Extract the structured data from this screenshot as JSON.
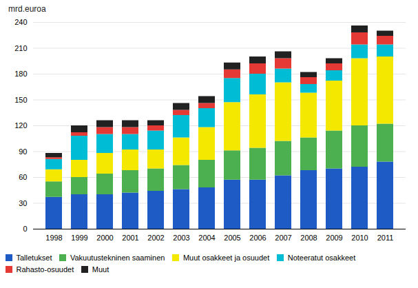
{
  "chart_data": {
    "type": "bar",
    "stacked": true,
    "categories": [
      "1998",
      "1999",
      "2000",
      "2001",
      "2002",
      "2003",
      "2004",
      "2005",
      "2006",
      "2007",
      "2008",
      "2009",
      "2010",
      "2011"
    ],
    "series": [
      {
        "name": "Talletukset",
        "color": "#1f5bc4",
        "values": [
          37,
          40,
          40,
          42,
          44,
          46,
          48,
          57,
          57,
          62,
          68,
          70,
          72,
          78
        ]
      },
      {
        "name": "Vakuutustekninen saaminen",
        "color": "#4caf50",
        "values": [
          18,
          20,
          24,
          26,
          26,
          28,
          32,
          34,
          37,
          40,
          38,
          44,
          48,
          44
        ]
      },
      {
        "name": "Muut osakkeet ja osuudet",
        "color": "#f5e800",
        "values": [
          14,
          20,
          24,
          24,
          22,
          32,
          38,
          56,
          62,
          68,
          52,
          58,
          78,
          78
        ]
      },
      {
        "name": "Noteeratut osakkeet",
        "color": "#00bcd4",
        "values": [
          12,
          28,
          22,
          18,
          22,
          26,
          22,
          28,
          24,
          16,
          10,
          12,
          16,
          14
        ]
      },
      {
        "name": "Rahasto-osuudet",
        "color": "#e53935",
        "values": [
          2,
          4,
          8,
          8,
          6,
          6,
          6,
          10,
          12,
          12,
          8,
          8,
          14,
          10
        ]
      },
      {
        "name": "Muut",
        "color": "#212121",
        "values": [
          5,
          8,
          8,
          8,
          6,
          8,
          8,
          8,
          8,
          8,
          6,
          6,
          8,
          6
        ]
      }
    ],
    "ylabel": "mrd.euroa",
    "ylim": [
      0,
      240
    ],
    "yticks": [
      0,
      30,
      60,
      90,
      120,
      150,
      180,
      210,
      240
    ],
    "grid": true,
    "legend": "bottom"
  }
}
